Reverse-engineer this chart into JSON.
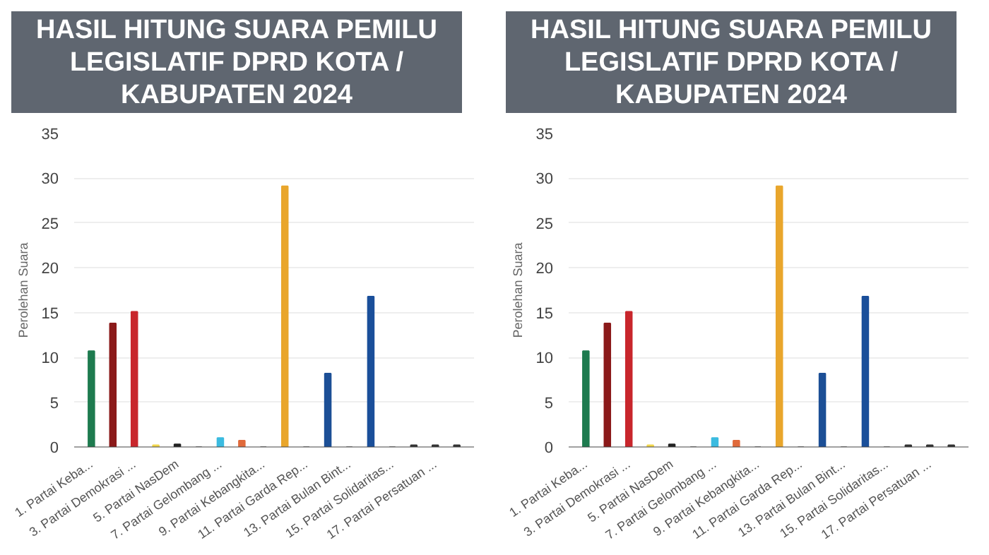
{
  "chart_data": [
    {
      "type": "bar",
      "title": "HASIL HITUNG SUARA PEMILU LEGISLATIF DPRD KOTA / KABUPATEN 2024",
      "ylabel": "Perolehan Suara",
      "categories": [
        "1. Partai Keba...",
        null,
        "3. Partai Demokrasi ...",
        null,
        "5. Partai NasDem",
        null,
        "7. Partai Gelombang ...",
        null,
        "9. Partai Kebangkita...",
        null,
        "11. Partai Garda Rep...",
        null,
        "13. Partai Bulan Bint...",
        null,
        "15. Partai Solidaritas...",
        null,
        "17. Partai Persatuan ...",
        null
      ],
      "values": [
        10.7,
        13.8,
        15.1,
        0.2,
        0.3,
        0,
        1.0,
        0.7,
        0,
        29.1,
        0,
        8.2,
        0,
        16.8,
        0,
        0.2,
        0.2,
        0.2
      ],
      "colors": [
        "#1e7b4f",
        "#8b1a1a",
        "#c8262c",
        "#f2d64b",
        "#222222",
        "#888888",
        "#3bbbe0",
        "#e06a3b",
        "#888888",
        "#e9a62c",
        "#888888",
        "#1c4f96",
        "#888888",
        "#1a4f9a",
        "#888888",
        "#333333",
        "#333333",
        "#333333"
      ],
      "ylim": [
        0,
        35
      ],
      "yticks": [
        0,
        5,
        10,
        15,
        20,
        25,
        30,
        35
      ],
      "grid": "y"
    },
    {
      "type": "bar",
      "title": "HASIL HITUNG SUARA PEMILU LEGISLATIF DPRD KOTA / KABUPATEN 2024",
      "ylabel": "Perolehan Suara",
      "categories": [
        "1. Partai Keba...",
        null,
        "3. Partai Demokrasi ...",
        null,
        "5. Partai NasDem",
        null,
        "7. Partai Gelombang ...",
        null,
        "9. Partai Kebangkita...",
        null,
        "11. Partai Garda Rep...",
        null,
        "13. Partai Bulan Bint...",
        null,
        "15. Partai Solidaritas...",
        null,
        "17. Partai Persatuan ...",
        null
      ],
      "values": [
        10.7,
        13.8,
        15.1,
        0.2,
        0.3,
        0,
        1.0,
        0.7,
        0,
        29.1,
        0,
        8.2,
        0,
        16.8,
        0,
        0.2,
        0.2,
        0.2
      ],
      "colors": [
        "#1e7b4f",
        "#8b1a1a",
        "#c8262c",
        "#f2d64b",
        "#222222",
        "#888888",
        "#3bbbe0",
        "#e06a3b",
        "#888888",
        "#e9a62c",
        "#888888",
        "#1c4f96",
        "#888888",
        "#1a4f9a",
        "#888888",
        "#333333",
        "#333333",
        "#333333"
      ],
      "ylim": [
        0,
        35
      ],
      "yticks": [
        0,
        5,
        10,
        15,
        20,
        25,
        30,
        35
      ],
      "grid": "y"
    }
  ]
}
